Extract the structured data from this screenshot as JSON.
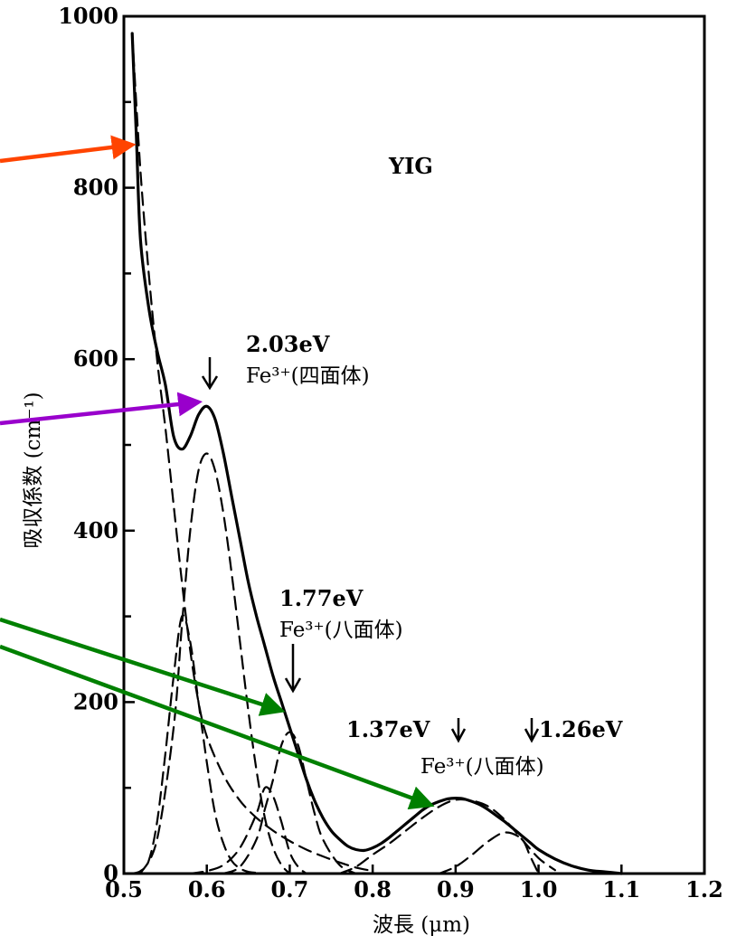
{
  "chart_data": {
    "type": "line",
    "xlabel": "波長 (μm)",
    "ylabel": "吸収係数 (cm⁻¹)",
    "xlim": [
      0.5,
      1.2
    ],
    "ylim": [
      0,
      1000
    ],
    "x_ticks": [
      "0.5",
      "0.6",
      "0.7",
      "0.8",
      "0.9",
      "1.0",
      "1.1",
      "1.2"
    ],
    "y_ticks": [
      "0",
      "200",
      "400",
      "600",
      "800",
      "1000"
    ],
    "grid": false,
    "series": [
      {
        "style": "solid",
        "x": [
          0.51,
          0.515,
          0.52,
          0.53,
          0.54,
          0.55,
          0.56,
          0.57,
          0.58,
          0.59,
          0.6,
          0.61,
          0.62,
          0.63,
          0.64,
          0.65,
          0.66,
          0.67,
          0.68,
          0.69,
          0.7,
          0.71,
          0.72,
          0.73,
          0.74,
          0.75,
          0.76,
          0.77,
          0.78,
          0.79,
          0.8,
          0.81,
          0.82,
          0.83,
          0.84,
          0.85,
          0.86,
          0.87,
          0.88,
          0.89,
          0.9,
          0.91,
          0.92,
          0.93,
          0.94,
          0.95,
          0.96,
          0.97,
          0.98,
          0.99,
          1.0,
          1.02,
          1.04,
          1.06,
          1.08,
          1.1
        ],
        "y": [
          980,
          860,
          740,
          660,
          610,
          570,
          510,
          495,
          510,
          535,
          545,
          530,
          490,
          440,
          390,
          340,
          300,
          265,
          230,
          200,
          170,
          140,
          110,
          85,
          65,
          50,
          40,
          32,
          28,
          27,
          30,
          35,
          42,
          50,
          58,
          66,
          74,
          80,
          84,
          87,
          88,
          87,
          84,
          80,
          74,
          67,
          60,
          52,
          44,
          36,
          28,
          17,
          9,
          4,
          2,
          0
        ]
      },
      {
        "style": "dashed",
        "x": [
          0.51,
          0.52,
          0.53,
          0.54,
          0.55,
          0.56,
          0.57,
          0.58,
          0.59,
          0.6,
          0.62,
          0.64,
          0.66,
          0.68,
          0.7,
          0.72,
          0.74,
          0.76,
          0.78,
          0.8
        ],
        "y": [
          980,
          820,
          700,
          600,
          520,
          430,
          340,
          260,
          200,
          160,
          115,
          85,
          65,
          50,
          38,
          28,
          20,
          13,
          7,
          3
        ]
      },
      {
        "style": "dashed",
        "x": [
          0.51,
          0.52,
          0.53,
          0.54,
          0.55,
          0.56,
          0.57,
          0.58,
          0.59,
          0.6,
          0.61,
          0.62,
          0.63,
          0.64,
          0.65,
          0.66,
          0.67,
          0.68
        ],
        "y": [
          0,
          3,
          15,
          60,
          140,
          230,
          300,
          270,
          200,
          130,
          70,
          35,
          15,
          6,
          2,
          1,
          0,
          0
        ]
      },
      {
        "style": "dashed",
        "x": [
          0.52,
          0.54,
          0.56,
          0.57,
          0.58,
          0.59,
          0.6,
          0.61,
          0.62,
          0.63,
          0.64,
          0.65,
          0.66,
          0.67,
          0.68,
          0.69,
          0.7
        ],
        "y": [
          0,
          40,
          170,
          290,
          400,
          470,
          490,
          470,
          420,
          350,
          270,
          190,
          120,
          65,
          30,
          10,
          0
        ]
      },
      {
        "style": "dashed",
        "x": [
          0.62,
          0.64,
          0.66,
          0.67,
          0.68,
          0.69,
          0.7,
          0.71,
          0.72,
          0.73,
          0.74,
          0.76,
          0.78
        ],
        "y": [
          0,
          8,
          40,
          75,
          110,
          150,
          165,
          150,
          110,
          70,
          40,
          10,
          0
        ]
      },
      {
        "style": "dashed",
        "x": [
          0.58,
          0.6,
          0.62,
          0.64,
          0.66,
          0.67,
          0.68,
          0.69,
          0.7,
          0.71,
          0.72
        ],
        "y": [
          0,
          3,
          10,
          30,
          70,
          100,
          90,
          60,
          25,
          8,
          0
        ]
      },
      {
        "style": "dashed",
        "x": [
          0.76,
          0.78,
          0.8,
          0.82,
          0.84,
          0.86,
          0.88,
          0.9,
          0.92,
          0.94,
          0.96,
          0.98,
          1.0,
          1.02
        ],
        "y": [
          0,
          8,
          22,
          35,
          50,
          65,
          78,
          86,
          85,
          78,
          62,
          40,
          18,
          4
        ]
      },
      {
        "style": "dashed",
        "x": [
          0.88,
          0.9,
          0.92,
          0.94,
          0.96,
          0.98,
          0.99,
          1.0
        ],
        "y": [
          0,
          8,
          22,
          38,
          48,
          40,
          20,
          0
        ]
      }
    ],
    "annotations": [
      {
        "text": "YIG"
      },
      {
        "text": "2.03eV",
        "x": 0.6
      },
      {
        "text": "Fe³⁺(四面体)"
      },
      {
        "text": "1.77eV",
        "x": 0.7
      },
      {
        "text": "Fe³⁺(八面体)"
      },
      {
        "text": "1.37eV",
        "x": 0.905
      },
      {
        "text": "1.26eV",
        "x": 0.985
      },
      {
        "text": "Fe³⁺(八面体)"
      }
    ],
    "overlay_arrows": [
      {
        "color": "#ff4400",
        "target_x": 0.51,
        "target_y": 850
      },
      {
        "color": "#9900cc",
        "target_x": 0.59,
        "target_y": 550
      },
      {
        "color": "#008000",
        "target_x": 0.69,
        "target_y": 190
      },
      {
        "color": "#008000",
        "target_x": 0.87,
        "target_y": 80
      }
    ]
  }
}
